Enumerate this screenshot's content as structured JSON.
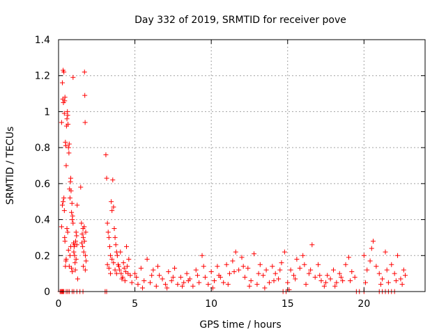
{
  "chart_data": {
    "type": "scatter",
    "title": "Day 332 of 2019, SRMTID for receiver pove",
    "xlabel": "GPS time / hours",
    "ylabel": "SRMTID / TECUs",
    "xlim": [
      0,
      24
    ],
    "ylim": [
      0,
      1.4
    ],
    "xticks": [
      0,
      5,
      10,
      15,
      20
    ],
    "yticks": [
      0,
      0.2,
      0.4,
      0.6,
      0.8,
      1,
      1.2,
      1.4
    ],
    "xtick_labels": [
      "0",
      "5",
      "10",
      "15",
      "20"
    ],
    "ytick_labels": [
      "0",
      "0.2",
      "0.4",
      "0.6",
      "0.8",
      "1",
      "1.2",
      "1.4"
    ],
    "grid": true,
    "marker": "+",
    "marker_color": "#ff0000",
    "series": [
      {
        "name": "SRMTID",
        "points": [
          [
            0.1,
            0
          ],
          [
            0.15,
            0
          ],
          [
            0.2,
            0
          ],
          [
            0.25,
            0
          ],
          [
            0.3,
            0
          ],
          [
            0.35,
            0
          ],
          [
            0.5,
            0
          ],
          [
            0.6,
            0
          ],
          [
            0.7,
            0
          ],
          [
            0.9,
            0
          ],
          [
            1.0,
            0
          ],
          [
            1.2,
            0
          ],
          [
            1.4,
            0
          ],
          [
            1.6,
            0
          ],
          [
            0.2,
            0.94
          ],
          [
            0.25,
            1.16
          ],
          [
            0.28,
            1.07
          ],
          [
            0.3,
            1.23
          ],
          [
            0.32,
            1.05
          ],
          [
            0.35,
            1.22
          ],
          [
            0.38,
            0.99
          ],
          [
            0.4,
            1.06
          ],
          [
            0.42,
            1.08
          ],
          [
            0.45,
            0.83
          ],
          [
            0.48,
            0.81
          ],
          [
            0.5,
            0.7
          ],
          [
            0.52,
            0.92
          ],
          [
            0.55,
            0.96
          ],
          [
            0.58,
            1.0
          ],
          [
            0.6,
            0.98
          ],
          [
            0.62,
            0.93
          ],
          [
            0.65,
            0.8
          ],
          [
            0.68,
            0.77
          ],
          [
            0.7,
            0.82
          ],
          [
            0.72,
            0.57
          ],
          [
            0.75,
            0.52
          ],
          [
            0.78,
            0.61
          ],
          [
            0.8,
            0.63
          ],
          [
            0.82,
            0.56
          ],
          [
            0.85,
            0.44
          ],
          [
            0.88,
            0.49
          ],
          [
            0.9,
            0.4
          ],
          [
            0.92,
            0.42
          ],
          [
            0.95,
            0.38
          ],
          [
            0.98,
            0.27
          ],
          [
            1.0,
            0.22
          ],
          [
            1.02,
            0.25
          ],
          [
            1.05,
            0.2
          ],
          [
            1.08,
            0.16
          ],
          [
            1.1,
            0.12
          ],
          [
            1.12,
            0.28
          ],
          [
            1.15,
            0.33
          ],
          [
            1.18,
            0.31
          ],
          [
            1.2,
            0.26
          ],
          [
            1.22,
            0.48
          ],
          [
            0.2,
            0.36
          ],
          [
            0.25,
            0.48
          ],
          [
            0.3,
            0.5
          ],
          [
            0.35,
            0.52
          ],
          [
            0.38,
            0.45
          ],
          [
            0.4,
            0.3
          ],
          [
            0.42,
            0.28
          ],
          [
            0.45,
            0.14
          ],
          [
            0.48,
            0.17
          ],
          [
            0.5,
            0.18
          ],
          [
            0.55,
            0.35
          ],
          [
            0.6,
            0.33
          ],
          [
            0.65,
            0.23
          ],
          [
            0.7,
            0.14
          ],
          [
            0.75,
            0.2
          ],
          [
            0.8,
            0.25
          ],
          [
            0.85,
            0.13
          ],
          [
            0.9,
            0.11
          ],
          [
            0.95,
            1.19
          ],
          [
            1.05,
            0.26
          ],
          [
            1.15,
            0.18
          ],
          [
            1.25,
            0.07
          ],
          [
            1.45,
            0.58
          ],
          [
            1.5,
            0.38
          ],
          [
            1.52,
            0.27
          ],
          [
            1.55,
            0.32
          ],
          [
            1.58,
            0.25
          ],
          [
            1.6,
            0.35
          ],
          [
            1.62,
            0.3
          ],
          [
            1.65,
            0.22
          ],
          [
            1.68,
            0.36
          ],
          [
            1.7,
            1.22
          ],
          [
            1.72,
            1.09
          ],
          [
            1.74,
            0.94
          ],
          [
            1.76,
            0.2
          ],
          [
            1.78,
            0.33
          ],
          [
            1.8,
            0.17
          ],
          [
            1.75,
            0.12
          ],
          [
            1.7,
            0.28
          ],
          [
            1.62,
            0.14
          ],
          [
            3.1,
            0.76
          ],
          [
            3.15,
            0.63
          ],
          [
            3.2,
            0.38
          ],
          [
            3.25,
            0.33
          ],
          [
            3.3,
            0.3
          ],
          [
            3.35,
            0.25
          ],
          [
            3.4,
            0.2
          ],
          [
            3.45,
            0.5
          ],
          [
            3.5,
            0.45
          ],
          [
            3.55,
            0.62
          ],
          [
            3.6,
            0.47
          ],
          [
            3.65,
            0.35
          ],
          [
            3.7,
            0.3
          ],
          [
            3.75,
            0.26
          ],
          [
            3.8,
            0.22
          ],
          [
            3.2,
            0.15
          ],
          [
            3.3,
            0.13
          ],
          [
            3.4,
            0.1
          ],
          [
            3.5,
            0.18
          ],
          [
            3.6,
            0.16
          ],
          [
            3.7,
            0.12
          ],
          [
            3.8,
            0.1
          ],
          [
            3.9,
            0.15
          ],
          [
            4.0,
            0.12
          ],
          [
            4.1,
            0.1
          ],
          [
            4.2,
            0.08
          ],
          [
            4.3,
            0.13
          ],
          [
            4.4,
            0.11
          ],
          [
            4.5,
            0.14
          ],
          [
            4.6,
            0.18
          ],
          [
            4.7,
            0.09
          ],
          [
            3.85,
            0.2
          ],
          [
            3.95,
            0.14
          ],
          [
            4.05,
            0.22
          ],
          [
            4.15,
            0.07
          ],
          [
            4.25,
            0.16
          ],
          [
            4.35,
            0.06
          ],
          [
            4.45,
            0.25
          ],
          [
            4.55,
            0.1
          ],
          [
            4.8,
            0.05
          ],
          [
            5.0,
            0.1
          ],
          [
            5.2,
            0.04
          ],
          [
            5.4,
            0.13
          ],
          [
            5.6,
            0.06
          ],
          [
            5.8,
            0.18
          ],
          [
            6.0,
            0.05
          ],
          [
            6.2,
            0.12
          ],
          [
            6.4,
            0.03
          ],
          [
            6.6,
            0.09
          ],
          [
            6.8,
            0.07
          ],
          [
            7.0,
            0.04
          ],
          [
            7.2,
            0.11
          ],
          [
            7.4,
            0.06
          ],
          [
            7.6,
            0.13
          ],
          [
            7.8,
            0.04
          ],
          [
            8.0,
            0.08
          ],
          [
            8.2,
            0.05
          ],
          [
            8.4,
            0.1
          ],
          [
            8.6,
            0.07
          ],
          [
            8.8,
            0.03
          ],
          [
            9.0,
            0.12
          ],
          [
            9.2,
            0.05
          ],
          [
            9.4,
            0.2
          ],
          [
            9.6,
            0.08
          ],
          [
            9.8,
            0.04
          ],
          [
            10.0,
            0.11
          ],
          [
            10.2,
            0.06
          ],
          [
            10.4,
            0.14
          ],
          [
            10.6,
            0.08
          ],
          [
            10.8,
            0.05
          ],
          [
            11.0,
            0.15
          ],
          [
            11.2,
            0.1
          ],
          [
            11.4,
            0.17
          ],
          [
            11.6,
            0.22
          ],
          [
            11.8,
            0.12
          ],
          [
            12.0,
            0.19
          ],
          [
            12.2,
            0.08
          ],
          [
            12.4,
            0.13
          ],
          [
            12.6,
            0.06
          ],
          [
            12.8,
            0.21
          ],
          [
            13.0,
            0.04
          ],
          [
            13.2,
            0.15
          ],
          [
            13.4,
            0.09
          ],
          [
            13.6,
            0.12
          ],
          [
            13.8,
            0.05
          ],
          [
            14.0,
            0.14
          ],
          [
            14.2,
            0.1
          ],
          [
            14.4,
            0.07
          ],
          [
            14.6,
            0.16
          ],
          [
            14.8,
            0.22
          ],
          [
            15.0,
            0.05
          ],
          [
            15.2,
            0.12
          ],
          [
            15.4,
            0.09
          ],
          [
            15.6,
            0.18
          ],
          [
            15.8,
            0.13
          ],
          [
            16.0,
            0.2
          ],
          [
            16.2,
            0.04
          ],
          [
            16.4,
            0.1
          ],
          [
            16.6,
            0.26
          ],
          [
            16.8,
            0.08
          ],
          [
            17.0,
            0.15
          ],
          [
            17.2,
            0.06
          ],
          [
            17.4,
            0.03
          ],
          [
            17.6,
            0.09
          ],
          [
            17.8,
            0.07
          ],
          [
            18.0,
            0.12
          ],
          [
            18.2,
            0.05
          ],
          [
            18.4,
            0.1
          ],
          [
            18.6,
            0.06
          ],
          [
            18.8,
            0.15
          ],
          [
            19.0,
            0.19
          ],
          [
            19.2,
            0.11
          ],
          [
            19.4,
            0.08
          ],
          [
            20.0,
            0.2
          ],
          [
            20.2,
            0.12
          ],
          [
            20.4,
            0.17
          ],
          [
            20.6,
            0.28
          ],
          [
            20.8,
            0.14
          ],
          [
            21.0,
            0.1
          ],
          [
            21.2,
            0.07
          ],
          [
            21.4,
            0.22
          ],
          [
            21.6,
            0.05
          ],
          [
            21.8,
            0.15
          ],
          [
            22.0,
            0.1
          ],
          [
            22.2,
            0.2
          ],
          [
            22.4,
            0.07
          ],
          [
            22.6,
            0.12
          ],
          [
            22.7,
            0.09
          ],
          [
            5.1,
            0.08
          ],
          [
            5.5,
            0.02
          ],
          [
            6.1,
            0.09
          ],
          [
            6.5,
            0.14
          ],
          [
            7.1,
            0.02
          ],
          [
            7.5,
            0.08
          ],
          [
            8.1,
            0.03
          ],
          [
            8.5,
            0.06
          ],
          [
            9.1,
            0.09
          ],
          [
            9.5,
            0.14
          ],
          [
            10.1,
            0.02
          ],
          [
            10.5,
            0.09
          ],
          [
            11.1,
            0.04
          ],
          [
            11.5,
            0.11
          ],
          [
            12.1,
            0.14
          ],
          [
            12.5,
            0.03
          ],
          [
            13.1,
            0.1
          ],
          [
            13.5,
            0.02
          ],
          [
            14.1,
            0.06
          ],
          [
            14.5,
            0.12
          ],
          [
            15.1,
            0.01
          ],
          [
            15.5,
            0.07
          ],
          [
            16.1,
            0.15
          ],
          [
            16.5,
            0.12
          ],
          [
            17.1,
            0.09
          ],
          [
            17.5,
            0.05
          ],
          [
            18.1,
            0.03
          ],
          [
            18.5,
            0.08
          ],
          [
            19.1,
            0.06
          ],
          [
            20.1,
            0.05
          ],
          [
            20.5,
            0.24
          ],
          [
            21.1,
            0.04
          ],
          [
            21.5,
            0.12
          ],
          [
            22.1,
            0.06
          ],
          [
            22.5,
            0.04
          ],
          [
            19.5,
            0
          ],
          [
            19.7,
            0
          ],
          [
            20.0,
            0
          ],
          [
            21.0,
            0
          ],
          [
            21.2,
            0
          ],
          [
            21.4,
            0
          ],
          [
            21.6,
            0
          ],
          [
            21.8,
            0
          ],
          [
            22.0,
            0
          ],
          [
            14.7,
            0
          ],
          [
            14.9,
            0
          ],
          [
            3.05,
            0
          ],
          [
            3.15,
            0
          ]
        ]
      }
    ]
  }
}
